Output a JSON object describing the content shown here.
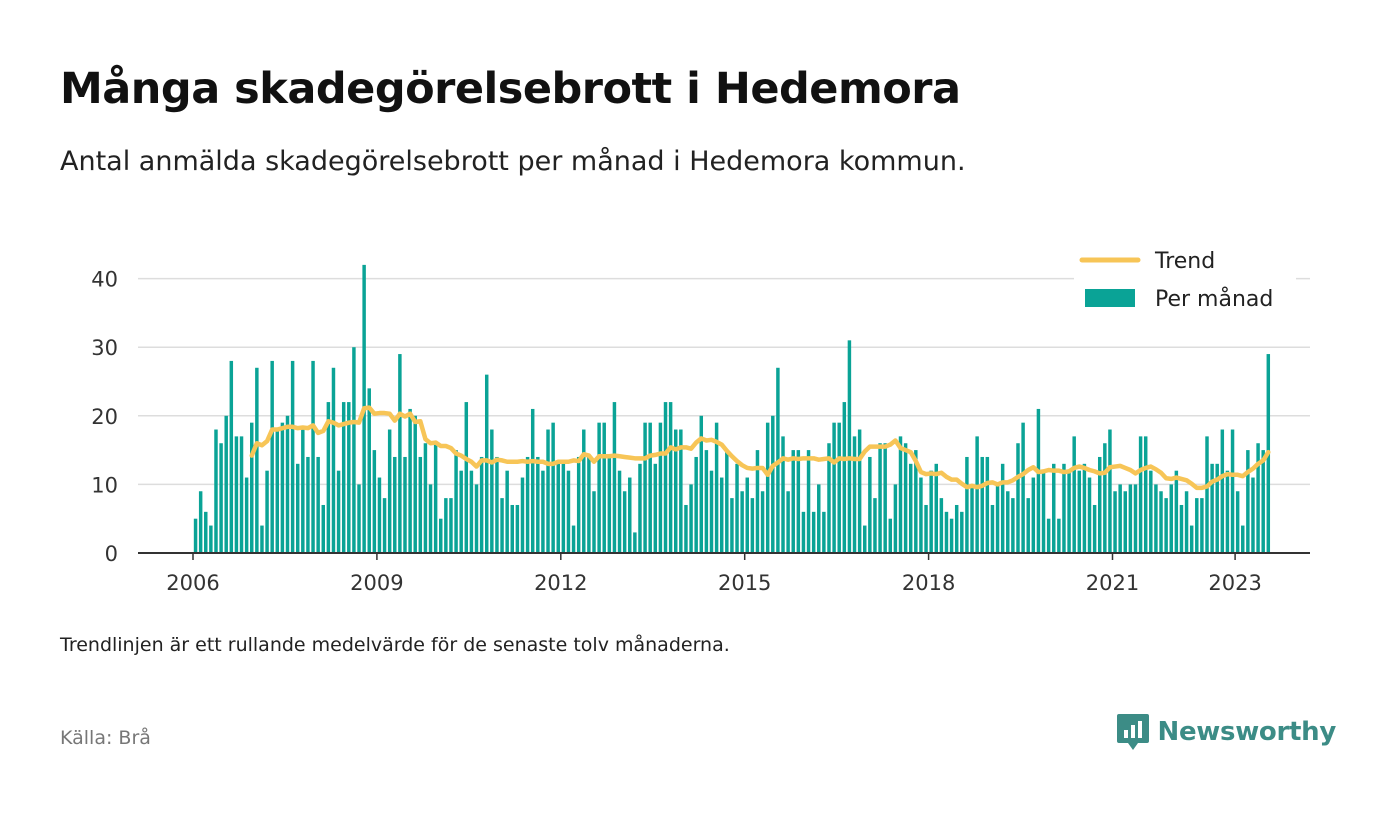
{
  "title": "Många skadegörelsebrott i Hedemora",
  "subtitle": "Antal anmälda skadegörelsebrott per månad i Hedemora kommun.",
  "note": "Trendlinjen är ett rullande medelvärde för de senaste tolv månaderna.",
  "source": "Källa: Brå",
  "brand": "Newsworthy",
  "colors": {
    "bars": "#0aa396",
    "trend": "#f7c557",
    "grid": "#dddddd",
    "axis": "#333333",
    "brand": "#3c8c86"
  },
  "legend": {
    "trend": "Trend",
    "bars": "Per månad",
    "position": "top-right"
  },
  "chart_data": {
    "type": "bar",
    "start": "2006-01",
    "xticks": [
      "2006",
      "2009",
      "2012",
      "2015",
      "2018",
      "2021",
      "2023"
    ],
    "yticks": [
      0,
      10,
      20,
      30,
      40
    ],
    "ylim": [
      0,
      43
    ],
    "grid": true,
    "series": [
      {
        "name": "Per månad",
        "type": "bar",
        "values": [
          5,
          9,
          6,
          4,
          18,
          16,
          20,
          28,
          17,
          17,
          11,
          19,
          27,
          4,
          12,
          28,
          18,
          19,
          20,
          28,
          13,
          18,
          14,
          28,
          14,
          7,
          22,
          27,
          12,
          22,
          22,
          30,
          10,
          42,
          24,
          15,
          11,
          8,
          18,
          14,
          29,
          14,
          21,
          20,
          14,
          16,
          10,
          16,
          5,
          8,
          8,
          15,
          12,
          22,
          12,
          10,
          14,
          26,
          18,
          14,
          8,
          12,
          7,
          7,
          11,
          14,
          21,
          14,
          12,
          18,
          19,
          13,
          13,
          12,
          4,
          14,
          18,
          14,
          9,
          19,
          19,
          14,
          22,
          12,
          9,
          11,
          3,
          13,
          19,
          19,
          13,
          19,
          22,
          22,
          18,
          18,
          7,
          10,
          14,
          20,
          15,
          12,
          19,
          11,
          15,
          8,
          13,
          9,
          11,
          8,
          15,
          9,
          19,
          20,
          27,
          17,
          9,
          15,
          15,
          6,
          15,
          6,
          10,
          6,
          16,
          19,
          19,
          22,
          31,
          17,
          18,
          4,
          14,
          8,
          16,
          16,
          5,
          10,
          17,
          16,
          13,
          15,
          11,
          7,
          12,
          13,
          8,
          6,
          5,
          7,
          6,
          14,
          10,
          17,
          14,
          14,
          7,
          10,
          13,
          9,
          8,
          16,
          19,
          8,
          11,
          21,
          12,
          5,
          13,
          5,
          13,
          12,
          17,
          12,
          13,
          11,
          7,
          14,
          16,
          18,
          9,
          10,
          9,
          10,
          10,
          17,
          17,
          12,
          10,
          9,
          8,
          10,
          12,
          7,
          9,
          4,
          8,
          8,
          17,
          13,
          13,
          18,
          12,
          18,
          9,
          4,
          15,
          11,
          16,
          15,
          29
        ],
        "trend": [
          null,
          null,
          null,
          null,
          null,
          null,
          null,
          null,
          null,
          null,
          null,
          14.2,
          16.0,
          15.7,
          16.3,
          18.0,
          18.0,
          18.2,
          18.4,
          18.4,
          18.2,
          18.3,
          18.2,
          18.6,
          17.5,
          17.8,
          19.2,
          19.0,
          18.6,
          18.8,
          19.0,
          19.1,
          19.0,
          21.1,
          21.2,
          20.3,
          20.4,
          20.4,
          20.3,
          19.3,
          20.3,
          19.9,
          20.3,
          19.1,
          19.2,
          16.6,
          16.0,
          16.1,
          15.6,
          15.6,
          15.3,
          14.5,
          14.2,
          13.7,
          13.3,
          12.6,
          13.5,
          13.5,
          13.2,
          13.6,
          13.5,
          13.3,
          13.3,
          13.3,
          13.4,
          13.3,
          13.4,
          13.3,
          13.3,
          13.0,
          13.0,
          13.3,
          13.3,
          13.3,
          13.5,
          13.4,
          14.4,
          14.2,
          13.3,
          14.1,
          14.1,
          14.1,
          14.2,
          14.1,
          14.0,
          13.9,
          13.8,
          13.8,
          13.8,
          14.2,
          14.3,
          14.5,
          14.5,
          15.4,
          15.1,
          15.4,
          15.4,
          15.2,
          16.1,
          16.7,
          16.4,
          16.5,
          16.2,
          15.8,
          14.9,
          14.1,
          13.4,
          12.8,
          12.4,
          12.3,
          12.4,
          12.4,
          11.4,
          12.7,
          13.2,
          13.8,
          13.6,
          13.8,
          13.7,
          13.8,
          13.8,
          13.8,
          13.6,
          13.7,
          13.8,
          13.2,
          13.8,
          13.7,
          13.8,
          13.7,
          13.7,
          14.8,
          15.5,
          15.5,
          15.5,
          15.5,
          15.8,
          16.4,
          15.3,
          15.0,
          14.7,
          13.4,
          11.8,
          11.5,
          11.6,
          11.5,
          11.7,
          11.1,
          10.7,
          10.7,
          10.1,
          9.6,
          9.8,
          9.6,
          9.8,
          10.2,
          10.3,
          10.0,
          10.3,
          10.3,
          10.6,
          11.1,
          11.5,
          12.1,
          12.5,
          11.8,
          11.9,
          12.1,
          12.0,
          12.0,
          11.8,
          11.9,
          12.4,
          12.6,
          12.4,
          12.1,
          11.9,
          11.6,
          11.7,
          12.5,
          12.6,
          12.7,
          12.4,
          12.1,
          11.6,
          12.1,
          12.4,
          12.6,
          12.2,
          11.7,
          10.9,
          10.8,
          11.0,
          10.8,
          10.6,
          10.1,
          9.5,
          9.5,
          9.7,
          10.4,
          10.7,
          11.2,
          11.5,
          11.4,
          11.4,
          11.2,
          11.8,
          12.3,
          13.0,
          13.5,
          14.7
        ]
      }
    ]
  }
}
